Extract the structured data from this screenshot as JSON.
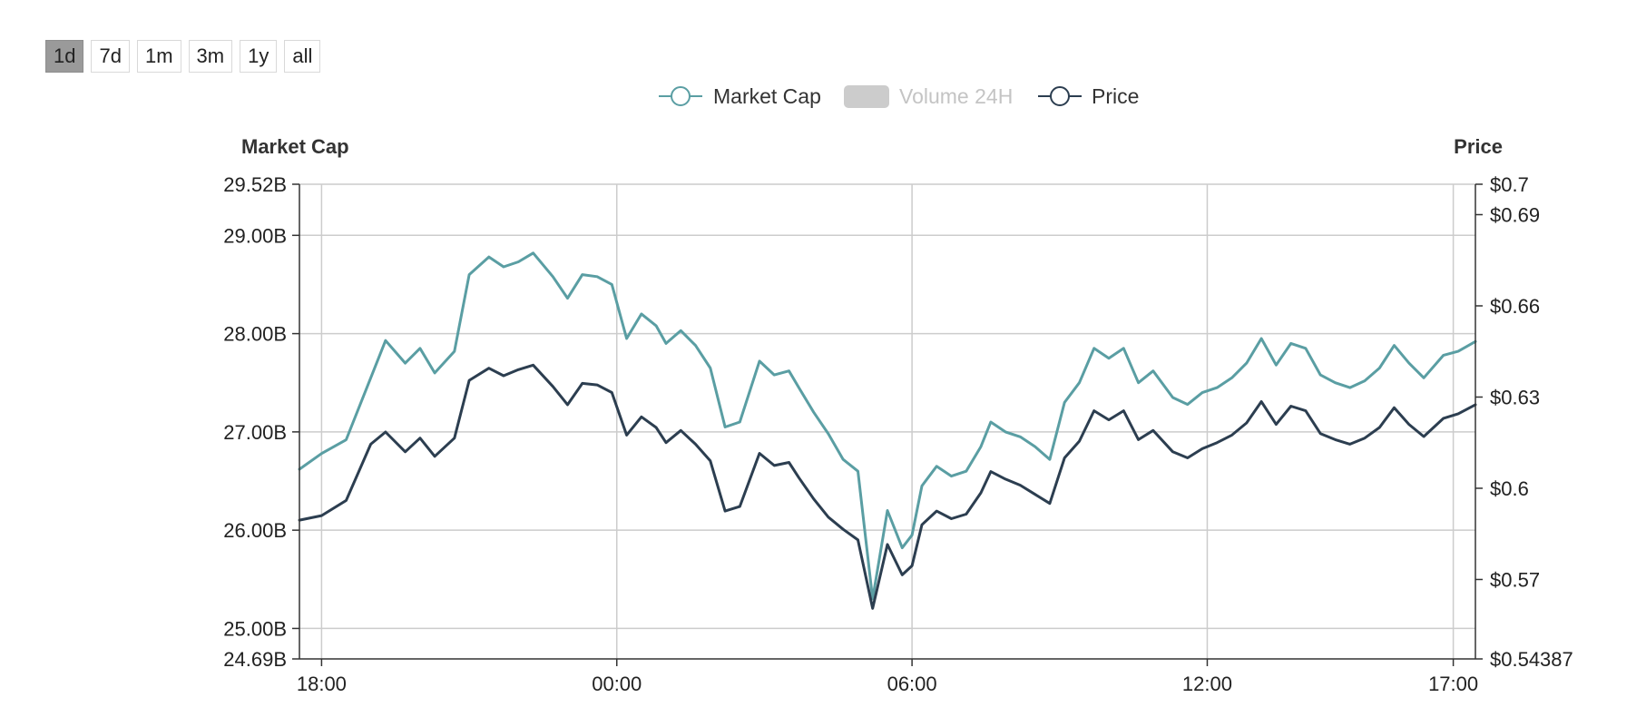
{
  "range_buttons": [
    {
      "label": "1d",
      "active": true
    },
    {
      "label": "7d",
      "active": false
    },
    {
      "label": "1m",
      "active": false
    },
    {
      "label": "3m",
      "active": false
    },
    {
      "label": "1y",
      "active": false
    },
    {
      "label": "all",
      "active": false
    }
  ],
  "colors": {
    "market_cap": "#5a9ea3",
    "price": "#2c3e50",
    "volume_disabled": "#cccccc",
    "grid": "#cccccc",
    "axis": "#333333"
  },
  "chart_data": {
    "type": "line",
    "legend_position": "top-center",
    "grid": true,
    "legend": [
      {
        "name": "Market Cap",
        "enabled": true
      },
      {
        "name": "Volume 24H",
        "enabled": false
      },
      {
        "name": "Price",
        "enabled": true
      }
    ],
    "left_axis": {
      "title": "Market Cap",
      "min": 24.69,
      "max": 29.52,
      "unit": "B",
      "ticks": [
        {
          "value": 24.69,
          "label": "24.69B"
        },
        {
          "value": 25.0,
          "label": "25.00B"
        },
        {
          "value": 26.0,
          "label": "26.00B"
        },
        {
          "value": 27.0,
          "label": "27.00B"
        },
        {
          "value": 28.0,
          "label": "28.00B"
        },
        {
          "value": 29.0,
          "label": "29.00B"
        },
        {
          "value": 29.52,
          "label": "29.52B"
        }
      ]
    },
    "right_axis": {
      "title": "Price",
      "min": 0.54387,
      "max": 0.7,
      "ticks": [
        {
          "value": 0.54387,
          "label": "$0.54387"
        },
        {
          "value": 0.57,
          "label": "$0.57"
        },
        {
          "value": 0.6,
          "label": "$0.6"
        },
        {
          "value": 0.63,
          "label": "$0.63"
        },
        {
          "value": 0.66,
          "label": "$0.66"
        },
        {
          "value": 0.69,
          "label": "$0.69"
        },
        {
          "value": 0.7,
          "label": "$0.7"
        }
      ]
    },
    "x_axis": {
      "min_hours": -0.45,
      "max_hours": 23.45,
      "ticks": [
        {
          "hours": 0,
          "label": "18:00"
        },
        {
          "hours": 6,
          "label": "00:00"
        },
        {
          "hours": 12,
          "label": "06:00"
        },
        {
          "hours": 18,
          "label": "12:00"
        },
        {
          "hours": 23,
          "label": "17:00"
        }
      ]
    },
    "x_hours_since_first_tick": [
      -0.45,
      0.0,
      0.5,
      1.0,
      1.3,
      1.7,
      2.0,
      2.3,
      2.7,
      3.0,
      3.4,
      3.7,
      4.0,
      4.3,
      4.7,
      5.0,
      5.3,
      5.6,
      5.9,
      6.2,
      6.5,
      6.8,
      7.0,
      7.3,
      7.6,
      7.9,
      8.2,
      8.5,
      8.9,
      9.2,
      9.5,
      9.7,
      10.0,
      10.3,
      10.6,
      10.9,
      11.2,
      11.5,
      11.8,
      12.0,
      12.2,
      12.5,
      12.8,
      13.1,
      13.4,
      13.6,
      13.9,
      14.2,
      14.5,
      14.8,
      15.1,
      15.4,
      15.7,
      16.0,
      16.3,
      16.6,
      16.9,
      17.3,
      17.6,
      17.9,
      18.2,
      18.5,
      18.8,
      19.1,
      19.4,
      19.7,
      20.0,
      20.3,
      20.6,
      20.9,
      21.2,
      21.5,
      21.8,
      22.1,
      22.4,
      22.8,
      23.1,
      23.45
    ],
    "series": [
      {
        "name": "Market Cap",
        "axis": "left",
        "values": [
          26.62,
          26.78,
          26.92,
          27.55,
          27.93,
          27.7,
          27.85,
          27.6,
          27.82,
          28.6,
          28.78,
          28.68,
          28.73,
          28.82,
          28.58,
          28.36,
          28.6,
          28.58,
          28.5,
          27.95,
          28.2,
          28.08,
          27.9,
          28.03,
          27.88,
          27.65,
          27.05,
          27.1,
          27.72,
          27.58,
          27.62,
          27.45,
          27.2,
          26.98,
          26.72,
          26.6,
          25.3,
          26.2,
          25.82,
          25.95,
          26.45,
          26.65,
          26.55,
          26.6,
          26.85,
          27.1,
          27.0,
          26.95,
          26.85,
          26.72,
          27.3,
          27.5,
          27.85,
          27.75,
          27.85,
          27.5,
          27.62,
          27.35,
          27.28,
          27.4,
          27.45,
          27.55,
          27.7,
          27.95,
          27.68,
          27.9,
          27.85,
          27.58,
          27.5,
          27.45,
          27.52,
          27.65,
          27.88,
          27.7,
          27.55,
          27.78,
          27.82,
          27.92
        ]
      },
      {
        "name": "Price",
        "axis": "right",
        "values": [
          0.5895,
          0.591,
          0.596,
          0.6145,
          0.6185,
          0.612,
          0.6165,
          0.6105,
          0.6165,
          0.6355,
          0.6395,
          0.637,
          0.639,
          0.6405,
          0.6335,
          0.6275,
          0.6345,
          0.634,
          0.6315,
          0.6175,
          0.6235,
          0.62,
          0.615,
          0.619,
          0.6145,
          0.609,
          0.5925,
          0.594,
          0.6115,
          0.6075,
          0.6085,
          0.6035,
          0.5965,
          0.5905,
          0.5865,
          0.583,
          0.5605,
          0.5815,
          0.5715,
          0.5745,
          0.588,
          0.5925,
          0.59,
          0.5915,
          0.5985,
          0.6055,
          0.603,
          0.601,
          0.598,
          0.595,
          0.61,
          0.6155,
          0.6255,
          0.6225,
          0.6255,
          0.616,
          0.619,
          0.612,
          0.61,
          0.613,
          0.615,
          0.6175,
          0.6215,
          0.6285,
          0.621,
          0.627,
          0.6255,
          0.618,
          0.616,
          0.6145,
          0.6165,
          0.62,
          0.6265,
          0.621,
          0.617,
          0.623,
          0.6245,
          0.6275
        ]
      }
    ]
  }
}
